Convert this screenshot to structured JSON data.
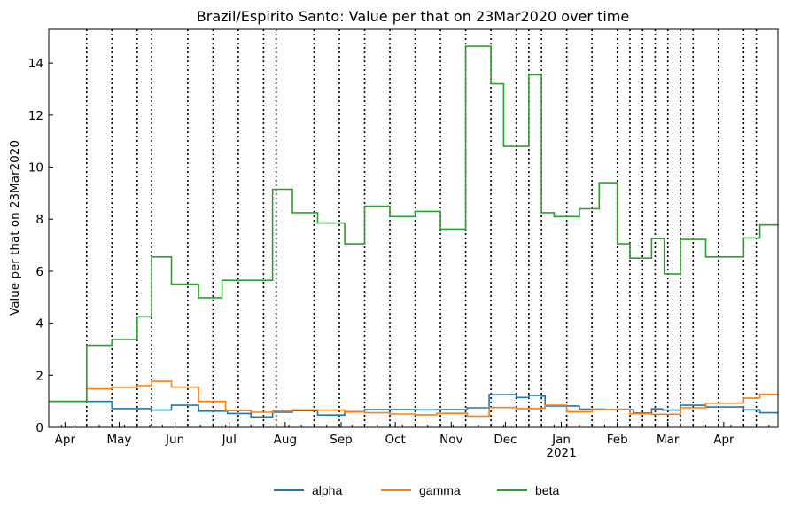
{
  "chart_data": {
    "type": "line",
    "title": "Brazil/Espirito Santo: Value per that on 23Mar2020 over time",
    "xlabel": "",
    "ylabel": "Value per that on 23Mar2020",
    "xlim": [
      "2020-03-23",
      "2021-05-01"
    ],
    "ylim": [
      0,
      15.3
    ],
    "yticks": [
      0,
      2,
      4,
      6,
      8,
      10,
      12,
      14
    ],
    "xticks": [
      {
        "date": "2020-04-01",
        "label": "Apr",
        "sub": ""
      },
      {
        "date": "2020-05-01",
        "label": "May",
        "sub": ""
      },
      {
        "date": "2020-06-01",
        "label": "Jun",
        "sub": ""
      },
      {
        "date": "2020-07-01",
        "label": "Jul",
        "sub": ""
      },
      {
        "date": "2020-08-01",
        "label": "Aug",
        "sub": ""
      },
      {
        "date": "2020-09-01",
        "label": "Sep",
        "sub": ""
      },
      {
        "date": "2020-10-01",
        "label": "Oct",
        "sub": ""
      },
      {
        "date": "2020-11-01",
        "label": "Nov",
        "sub": ""
      },
      {
        "date": "2020-12-01",
        "label": "Dec",
        "sub": ""
      },
      {
        "date": "2021-01-01",
        "label": "Jan",
        "sub": "2021"
      },
      {
        "date": "2021-02-01",
        "label": "Feb",
        "sub": ""
      },
      {
        "date": "2021-03-01",
        "label": "Mar",
        "sub": ""
      },
      {
        "date": "2021-04-01",
        "label": "Apr",
        "sub": ""
      }
    ],
    "vlines": [
      "2020-04-13",
      "2020-04-27",
      "2020-05-11",
      "2020-05-19",
      "2020-06-08",
      "2020-06-22",
      "2020-07-06",
      "2020-07-20",
      "2020-07-27",
      "2020-08-17",
      "2020-08-31",
      "2020-09-14",
      "2020-09-28",
      "2020-10-12",
      "2020-10-26",
      "2020-11-09",
      "2020-11-23",
      "2020-12-07",
      "2020-12-14",
      "2020-12-21",
      "2021-01-04",
      "2021-01-18",
      "2021-02-01",
      "2021-02-08",
      "2021-02-15",
      "2021-02-22",
      "2021-03-01",
      "2021-03-08",
      "2021-03-15",
      "2021-03-29",
      "2021-04-12",
      "2021-04-19"
    ],
    "grid": false,
    "legend_position": "bottom-center",
    "series": [
      {
        "name": "alpha",
        "color": "#1f77b4",
        "steps": [
          [
            "2020-03-23",
            1.0
          ],
          [
            "2020-04-13",
            1.0
          ],
          [
            "2020-04-27",
            0.72
          ],
          [
            "2020-05-19",
            0.66
          ],
          [
            "2020-05-30",
            0.85
          ],
          [
            "2020-06-14",
            0.62
          ],
          [
            "2020-06-30",
            0.53
          ],
          [
            "2020-07-13",
            0.4
          ],
          [
            "2020-07-25",
            0.58
          ],
          [
            "2020-08-05",
            0.64
          ],
          [
            "2020-08-19",
            0.47
          ],
          [
            "2020-09-03",
            0.6
          ],
          [
            "2020-09-14",
            0.68
          ],
          [
            "2020-10-12",
            0.67
          ],
          [
            "2020-10-24",
            0.68
          ],
          [
            "2020-11-10",
            0.75
          ],
          [
            "2020-11-22",
            1.26
          ],
          [
            "2020-12-07",
            1.15
          ],
          [
            "2020-12-14",
            1.23
          ],
          [
            "2020-12-21",
            1.2
          ],
          [
            "2020-12-23",
            0.82
          ],
          [
            "2021-01-11",
            0.7
          ],
          [
            "2021-01-25",
            0.68
          ],
          [
            "2021-02-10",
            0.55
          ],
          [
            "2021-02-20",
            0.71
          ],
          [
            "2021-02-26",
            0.66
          ],
          [
            "2021-03-08",
            0.85
          ],
          [
            "2021-03-22",
            0.78
          ],
          [
            "2021-04-12",
            0.67
          ],
          [
            "2021-04-21",
            0.56
          ],
          [
            "2021-05-01",
            0.56
          ]
        ]
      },
      {
        "name": "gamma",
        "color": "#ff7f0e",
        "steps": [
          [
            "2020-03-23",
            1.0
          ],
          [
            "2020-04-13",
            1.48
          ],
          [
            "2020-04-27",
            1.54
          ],
          [
            "2020-05-11",
            1.6
          ],
          [
            "2020-05-19",
            1.77
          ],
          [
            "2020-05-30",
            1.55
          ],
          [
            "2020-06-14",
            1.0
          ],
          [
            "2020-06-29",
            0.64
          ],
          [
            "2020-07-13",
            0.58
          ],
          [
            "2020-07-25",
            0.63
          ],
          [
            "2020-08-05",
            0.67
          ],
          [
            "2020-08-19",
            0.66
          ],
          [
            "2020-09-03",
            0.59
          ],
          [
            "2020-09-14",
            0.56
          ],
          [
            "2020-09-28",
            0.51
          ],
          [
            "2020-10-12",
            0.48
          ],
          [
            "2020-10-24",
            0.54
          ],
          [
            "2020-11-10",
            0.43
          ],
          [
            "2020-11-22",
            0.76
          ],
          [
            "2020-12-07",
            0.72
          ],
          [
            "2020-12-21",
            0.74
          ],
          [
            "2020-12-23",
            0.85
          ],
          [
            "2021-01-04",
            0.6
          ],
          [
            "2021-01-18",
            0.68
          ],
          [
            "2021-02-01",
            0.7
          ],
          [
            "2021-02-08",
            0.52
          ],
          [
            "2021-02-20",
            0.5
          ],
          [
            "2021-03-08",
            0.75
          ],
          [
            "2021-03-22",
            0.93
          ],
          [
            "2021-04-12",
            1.12
          ],
          [
            "2021-04-21",
            1.27
          ],
          [
            "2021-05-01",
            1.27
          ]
        ]
      },
      {
        "name": "beta",
        "color": "#2ca02c",
        "steps": [
          [
            "2020-03-23",
            1.0
          ],
          [
            "2020-04-13",
            3.15
          ],
          [
            "2020-04-27",
            3.37
          ],
          [
            "2020-05-11",
            4.25
          ],
          [
            "2020-05-19",
            6.55
          ],
          [
            "2020-05-30",
            5.5
          ],
          [
            "2020-06-14",
            4.98
          ],
          [
            "2020-06-27",
            5.65
          ],
          [
            "2020-07-25",
            9.15
          ],
          [
            "2020-08-05",
            8.25
          ],
          [
            "2020-08-19",
            7.85
          ],
          [
            "2020-09-03",
            7.05
          ],
          [
            "2020-09-14",
            8.5
          ],
          [
            "2020-09-28",
            8.1
          ],
          [
            "2020-10-12",
            8.3
          ],
          [
            "2020-10-26",
            7.62
          ],
          [
            "2020-11-09",
            14.65
          ],
          [
            "2020-11-23",
            13.2
          ],
          [
            "2020-11-30",
            10.8
          ],
          [
            "2020-12-14",
            13.55
          ],
          [
            "2020-12-21",
            8.25
          ],
          [
            "2020-12-28",
            8.1
          ],
          [
            "2021-01-11",
            8.4
          ],
          [
            "2021-01-22",
            9.4
          ],
          [
            "2021-02-01",
            7.05
          ],
          [
            "2021-02-08",
            6.5
          ],
          [
            "2021-02-20",
            7.25
          ],
          [
            "2021-02-27",
            5.9
          ],
          [
            "2021-03-08",
            7.22
          ],
          [
            "2021-03-22",
            6.55
          ],
          [
            "2021-04-12",
            7.28
          ],
          [
            "2021-04-21",
            7.78
          ],
          [
            "2021-05-01",
            7.78
          ]
        ]
      }
    ]
  }
}
